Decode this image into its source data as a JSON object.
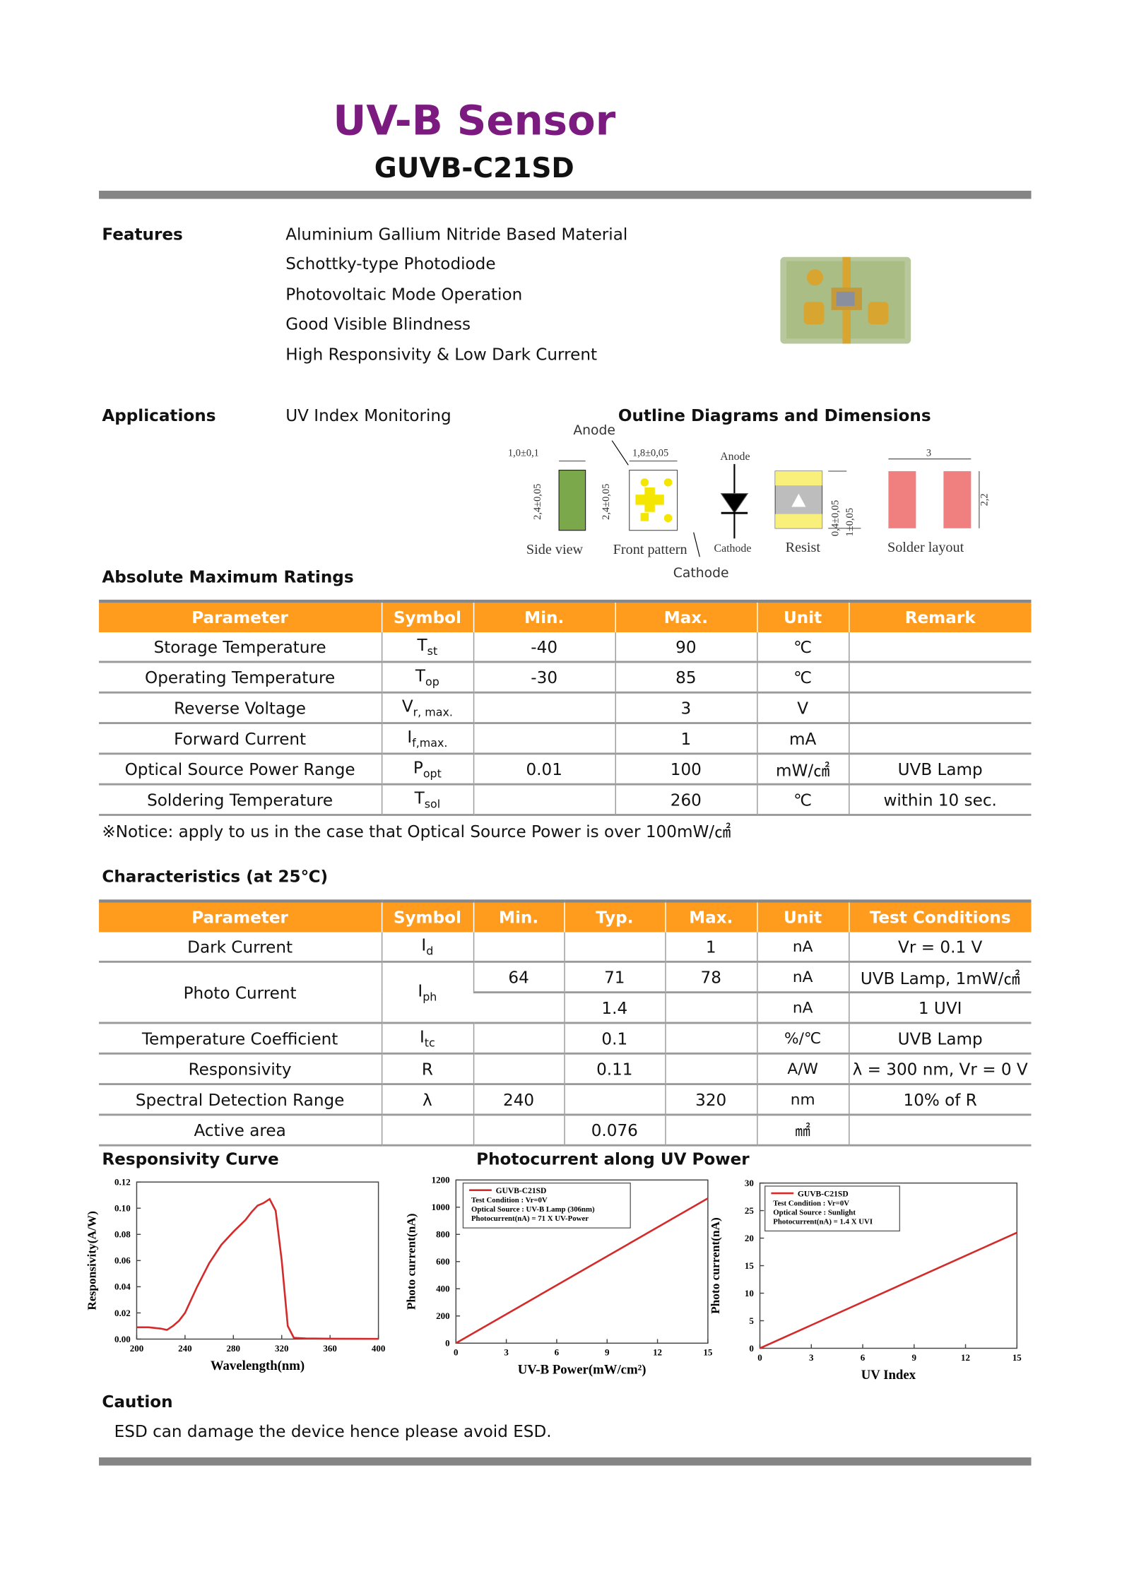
{
  "header": {
    "title": "UV-B Sensor",
    "subtitle": "GUVB-C21SD"
  },
  "features": {
    "label": "Features",
    "items": [
      "Aluminium Gallium Nitride Based Material",
      "Schottky-type Photodiode",
      "Photovoltaic Mode Operation",
      "Good Visible Blindness",
      "High Responsivity & Low Dark Current"
    ]
  },
  "applications": {
    "label": "Applications",
    "items": [
      "UV Index Monitoring"
    ]
  },
  "outline": {
    "title": "Outline Diagrams and Dimensions",
    "labels": {
      "anode_arrow": "Anode",
      "cathode_arrow": "Cathode",
      "side_width": "1,0±0,1",
      "side_height": "2,4±0,05",
      "front_width": "1,8±0,05",
      "front_height": "2,4±0,05",
      "diode_anode": "Anode",
      "diode_cathode": "Cathode",
      "side_view": "Side view",
      "front_pattern": "Front pattern",
      "resist": "Resist",
      "resist_dim1": "0,4±0,05",
      "resist_dim2": "1±0,05",
      "solder_gap": "3",
      "solder_height": "2,2",
      "solder_layout": "Solder layout"
    }
  },
  "absolute_max": {
    "title": "Absolute Maximum Ratings",
    "columns": [
      "Parameter",
      "Symbol",
      "Min.",
      "Max.",
      "Unit",
      "Remark"
    ],
    "rows": [
      {
        "parameter": "Storage Temperature",
        "symbol": "T",
        "symbol_sub": "st",
        "min": "-40",
        "max": "90",
        "unit": "℃"
      },
      {
        "parameter": "Operating Temperature",
        "symbol": "T",
        "symbol_sub": "op",
        "min": "-30",
        "max": "85",
        "unit": "℃"
      },
      {
        "parameter": "Reverse Voltage",
        "symbol": "V",
        "symbol_sub": "r, max.",
        "max": "3",
        "unit": "V"
      },
      {
        "parameter": "Forward Current",
        "symbol": "I",
        "symbol_sub": "f,max.",
        "max": "1",
        "unit": "mA"
      },
      {
        "parameter": "Optical Source Power Range",
        "symbol": "P",
        "symbol_sub": "opt",
        "min": "0.01",
        "max": "100",
        "unit": "mW/㎠",
        "remark": "UVB Lamp"
      },
      {
        "parameter": "Soldering Temperature",
        "symbol": "T",
        "symbol_sub": "sol",
        "max": "260",
        "unit": "℃",
        "remark": "within 10 sec."
      }
    ],
    "notice": "※Notice: apply to us in the case that Optical Source Power is over 100mW/㎠"
  },
  "characteristics": {
    "title": "Characteristics (at 25℃)",
    "columns": [
      "Parameter",
      "Symbol",
      "Min.",
      "Typ.",
      "Max.",
      "Unit",
      "Test Conditions"
    ],
    "rows": [
      {
        "parameter": "Dark Current",
        "symbol": "I",
        "symbol_sub": "d",
        "subrows": [
          {
            "max": "1",
            "unit": "nA",
            "conditions": "Vr = 0.1 V"
          }
        ]
      },
      {
        "parameter": "Photo Current",
        "symbol": "I",
        "symbol_sub": "ph",
        "subrows": [
          {
            "min": "64",
            "typ": "71",
            "max": "78",
            "unit": "nA",
            "conditions": "UVB Lamp, 1mW/㎠"
          },
          {
            "typ": "1.4",
            "unit": "nA",
            "conditions": "1 UVI"
          }
        ]
      },
      {
        "parameter": "Temperature Coefficient",
        "symbol": "I",
        "symbol_sub": "tc",
        "subrows": [
          {
            "typ": "0.1",
            "unit": "%/℃",
            "conditions": "UVB Lamp"
          }
        ]
      },
      {
        "parameter": "Responsivity",
        "symbol": "R",
        "subrows": [
          {
            "typ": "0.11",
            "unit": "A/W",
            "conditions": "λ = 300 nm, Vr = 0 V"
          }
        ]
      },
      {
        "parameter": "Spectral Detection Range",
        "symbol": "λ",
        "subrows": [
          {
            "min": "240",
            "max": "320",
            "unit": "nm",
            "conditions": "10% of R"
          }
        ]
      },
      {
        "parameter": "Active area",
        "subrows": [
          {
            "typ": "0.076",
            "unit": "㎟"
          }
        ]
      }
    ]
  },
  "chart_data": [
    {
      "type": "line",
      "title": "Responsivity Curve",
      "x_label": "Wavelength(nm)",
      "y_label": "Responsivity(A/W)",
      "xlim": [
        200,
        400
      ],
      "xticks": [
        200,
        240,
        280,
        320,
        360,
        400
      ],
      "ylim": [
        0,
        0.12
      ],
      "yticks": [
        {
          "value": 0,
          "label": "0.00"
        },
        {
          "value": 0.02,
          "label": "0.02"
        },
        {
          "value": 0.04,
          "label": "0.04"
        },
        {
          "value": 0.06,
          "label": "0.06"
        },
        {
          "value": 0.08,
          "label": "0.08"
        },
        {
          "value": 0.1,
          "label": "0.10"
        },
        {
          "value": 0.12,
          "label": "0.12"
        }
      ],
      "x": [
        200,
        210,
        220,
        225,
        230,
        235,
        240,
        250,
        260,
        270,
        280,
        290,
        295,
        300,
        305,
        310,
        315,
        320,
        325,
        330,
        340,
        360,
        400
      ],
      "series": [
        {
          "color": "#d42a2a",
          "values": [
            0.009,
            0.009,
            0.008,
            0.007,
            0.01,
            0.014,
            0.02,
            0.04,
            0.058,
            0.072,
            0.082,
            0.091,
            0.097,
            0.102,
            0.104,
            0.107,
            0.098,
            0.06,
            0.01,
            0.001,
            0.0005,
            0.0003,
            0.0002
          ]
        }
      ]
    },
    {
      "type": "line",
      "title": "Photocurrent along UV Power",
      "x_label": "UV-B Power(mW/cm²)",
      "y_label": "Photo current(nA)",
      "xlim": [
        0,
        15
      ],
      "xticks": [
        0,
        3,
        6,
        9,
        12,
        15
      ],
      "ylim": [
        0,
        1200
      ],
      "yticks": [
        0,
        200,
        400,
        600,
        800,
        1000,
        1200
      ],
      "x": [
        0,
        15
      ],
      "series": [
        {
          "name": "GUVB-C21SD",
          "color": "#d42a2a",
          "values": [
            0,
            1065
          ]
        }
      ],
      "legend_notes": [
        "Test Condition : Vr=0V",
        "Optical Source : UV-B Lamp (306nm)",
        "Photocurrent(nA) = 71 X UV-Power"
      ]
    },
    {
      "type": "line",
      "x_label": "UV Index",
      "y_label": "Photo current(nA)",
      "xlim": [
        0,
        15
      ],
      "xticks": [
        0,
        3,
        6,
        9,
        12,
        15
      ],
      "ylim": [
        0,
        30
      ],
      "yticks": [
        0,
        5,
        10,
        15,
        20,
        25,
        30
      ],
      "x": [
        0,
        15
      ],
      "series": [
        {
          "name": "GUVB-C21SD",
          "color": "#d42a2a",
          "values": [
            0,
            21
          ]
        }
      ],
      "legend_notes": [
        "Test Condition : Vr=0V",
        "Optical Source : Sunlight",
        "Photocurrent(nA) = 1.4 X UVI"
      ]
    }
  ],
  "caution": {
    "title": "Caution",
    "text": "ESD can damage the device hence please avoid ESD."
  }
}
